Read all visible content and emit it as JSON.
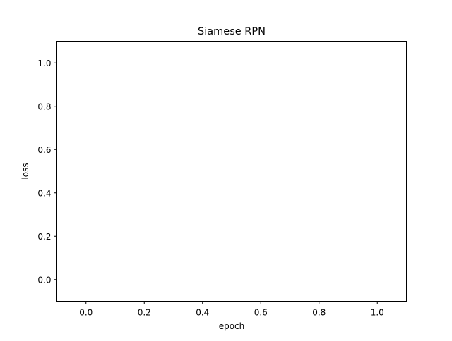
{
  "chart_data": {
    "type": "line",
    "title": "Siamese RPN",
    "xlabel": "epoch",
    "ylabel": "loss",
    "xlim": [
      -0.1,
      1.1
    ],
    "ylim": [
      -0.1,
      1.1
    ],
    "xticks": [
      0.0,
      0.2,
      0.4,
      0.6,
      0.8,
      1.0
    ],
    "yticks": [
      0.0,
      0.2,
      0.4,
      0.6,
      0.8,
      1.0
    ],
    "xtick_labels": [
      "0.0",
      "0.2",
      "0.4",
      "0.6",
      "0.8",
      "1.0"
    ],
    "ytick_labels": [
      "0.0",
      "0.2",
      "0.4",
      "0.6",
      "0.8",
      "1.0"
    ],
    "grid": false,
    "series": []
  }
}
